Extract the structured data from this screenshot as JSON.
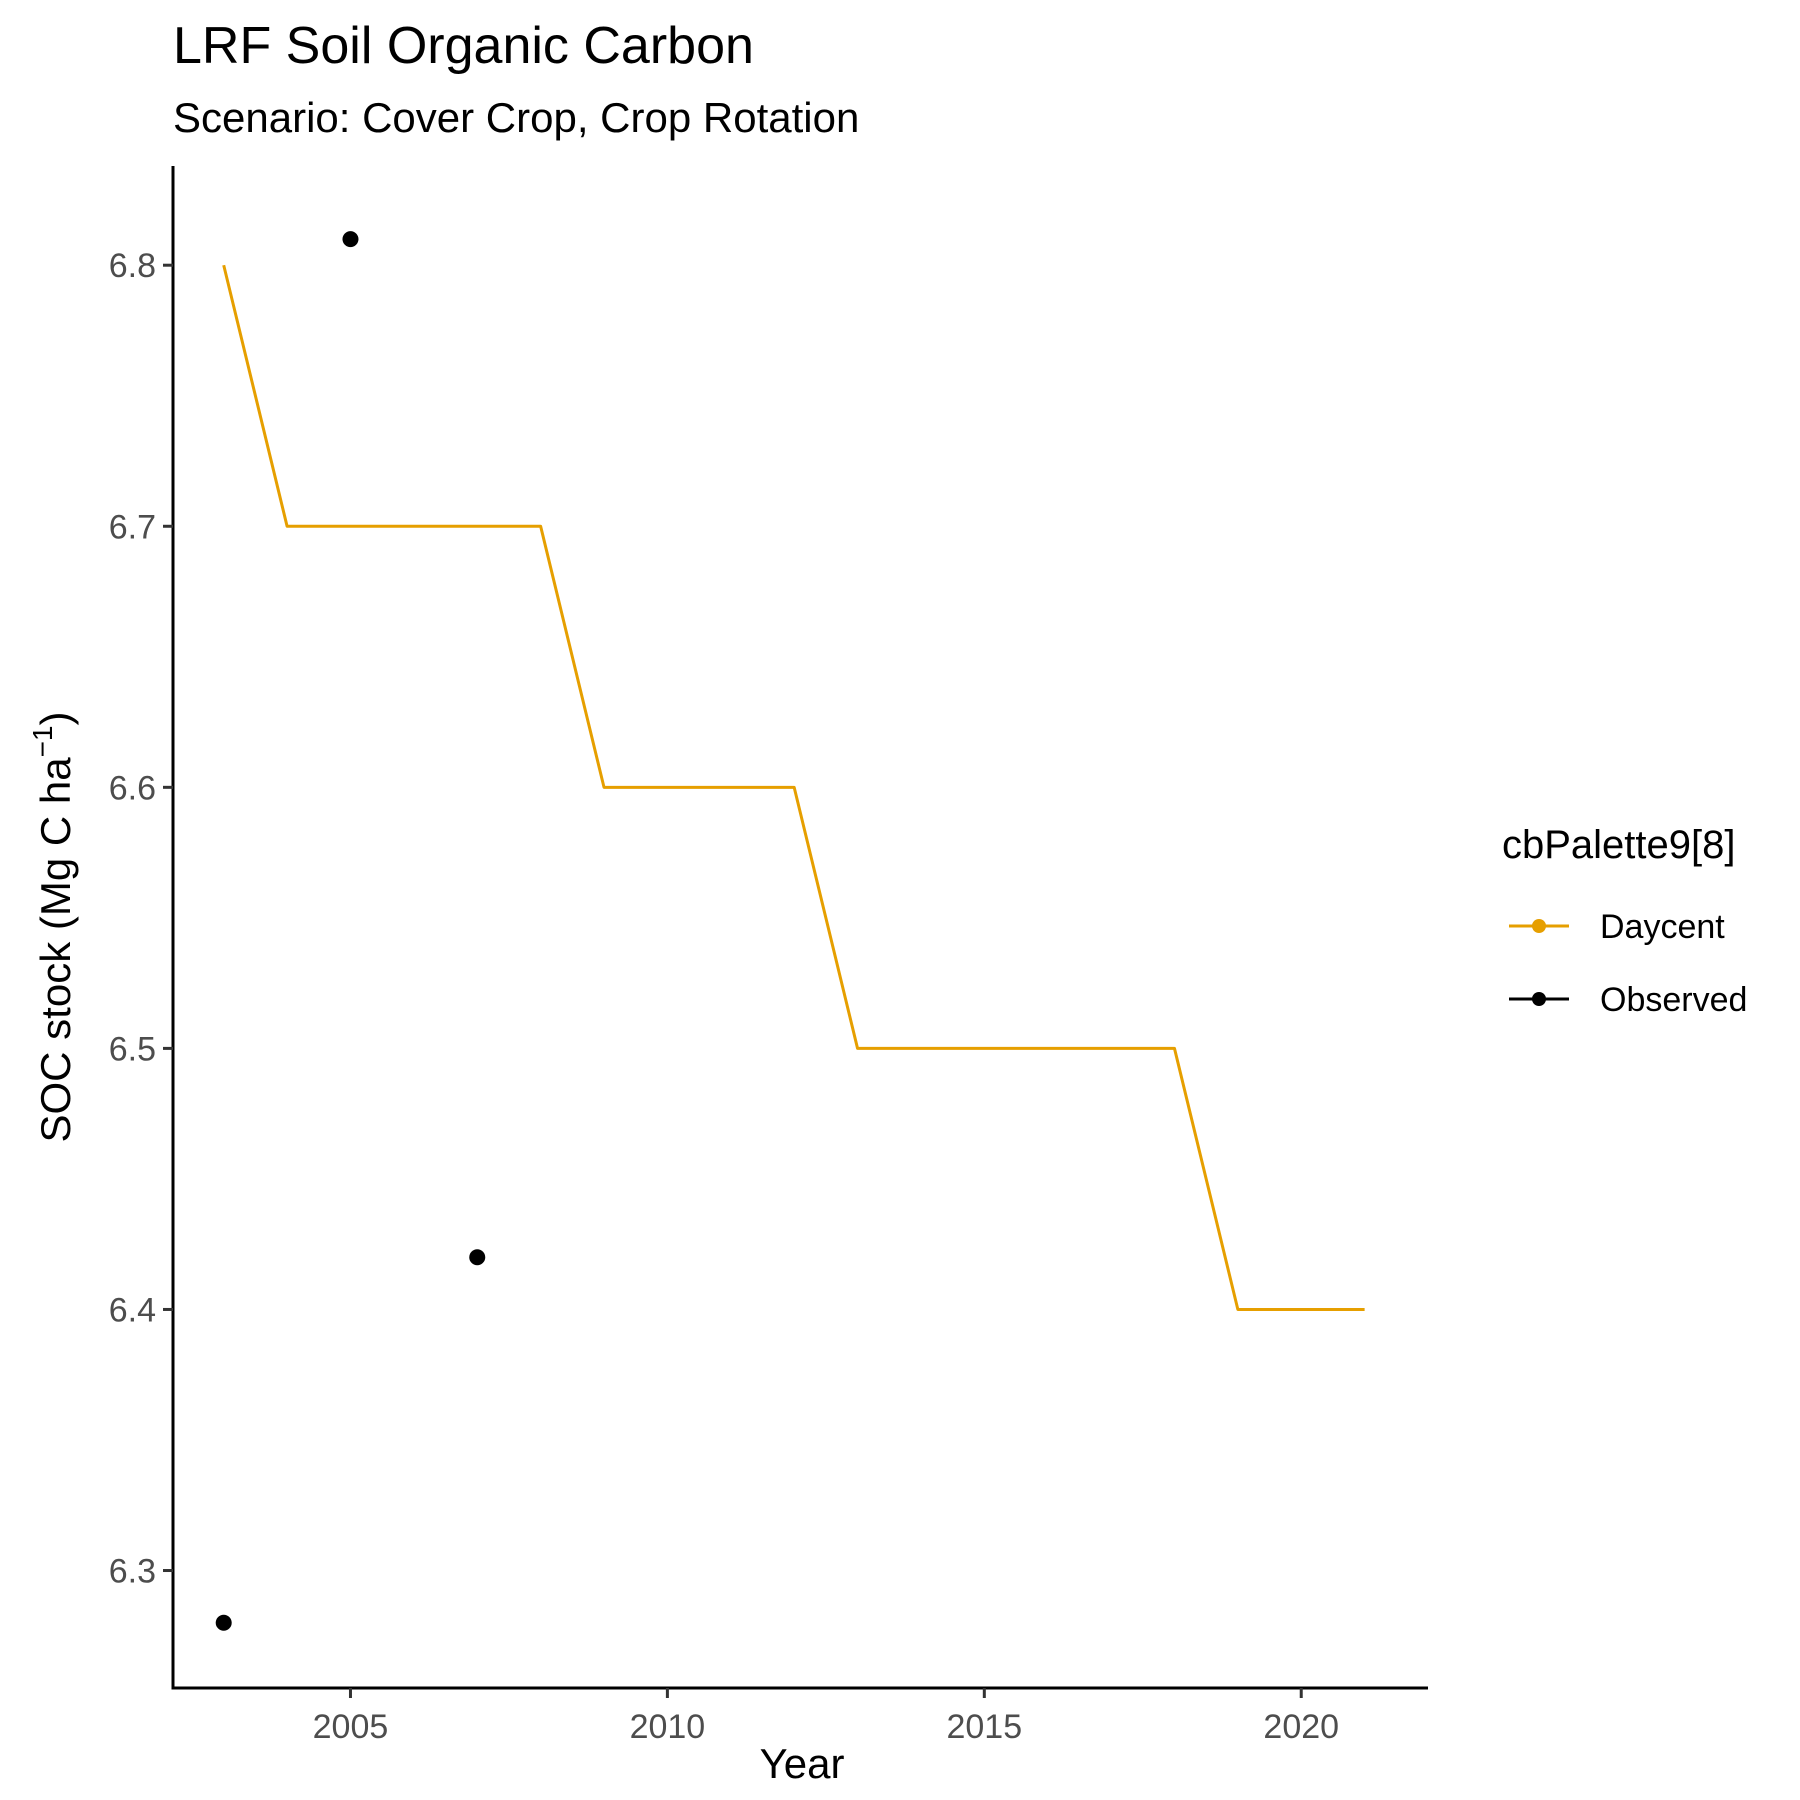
{
  "chart_data": {
    "type": "line",
    "title": "LRF Soil Organic Carbon",
    "subtitle": "Scenario: Cover Crop, Crop Rotation",
    "xlabel": "Year",
    "ylabel_main": "SOC stock (Mg C ha",
    "ylabel_sup": "−1",
    "ylabel_close": ")",
    "xlim": [
      2002.2,
      2022
    ],
    "ylim": [
      6.255,
      6.838
    ],
    "xticks": [
      2005,
      2010,
      2015,
      2020
    ],
    "yticks": [
      6.3,
      6.4,
      6.5,
      6.6,
      6.7,
      6.8
    ],
    "xtick_labels": [
      "2005",
      "2010",
      "2015",
      "2020"
    ],
    "ytick_labels": [
      "6.3",
      "6.4",
      "6.5",
      "6.6",
      "6.7",
      "6.8"
    ],
    "grid": false,
    "legend": {
      "title": "cbPalette9[8]",
      "position": "right",
      "items": [
        {
          "label": "Daycent",
          "color": "#E69F00"
        },
        {
          "label": "Observed",
          "color": "#000000"
        }
      ]
    },
    "series": [
      {
        "name": "Daycent",
        "kind": "line",
        "color": "#E69F00",
        "x": [
          2003,
          2004,
          2005,
          2006,
          2007,
          2008,
          2009,
          2010,
          2011,
          2012,
          2013,
          2014,
          2015,
          2016,
          2017,
          2018,
          2019,
          2020,
          2021
        ],
        "y": [
          6.8,
          6.7,
          6.7,
          6.7,
          6.7,
          6.7,
          6.6,
          6.6,
          6.6,
          6.6,
          6.5,
          6.5,
          6.5,
          6.5,
          6.5,
          6.5,
          6.4,
          6.4,
          6.4
        ]
      },
      {
        "name": "Observed",
        "kind": "points",
        "color": "#000000",
        "x": [
          2003,
          2005,
          2007
        ],
        "y": [
          6.28,
          6.81,
          6.42
        ]
      }
    ]
  }
}
